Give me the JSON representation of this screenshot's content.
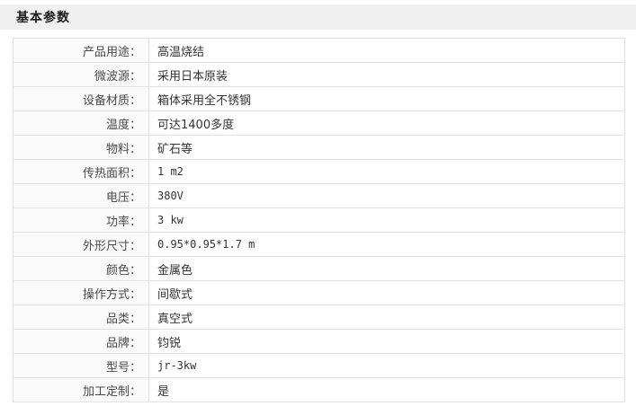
{
  "header": {
    "title": "基本参数",
    "background": "#f0f0f0",
    "text_color": "#1c1c1c"
  },
  "table": {
    "border_color": "#e2e2e2",
    "label_bg": "#fafafa",
    "value_bg": "#ffffff",
    "rows": [
      {
        "label": "产品用途：",
        "value": "高温烧结"
      },
      {
        "label": "微波源：",
        "value": "采用日本原装"
      },
      {
        "label": "设备材质：",
        "value": "箱体采用全不锈钢"
      },
      {
        "label": "温度：",
        "value": "可达1400多度"
      },
      {
        "label": "物料：",
        "value": "矿石等"
      },
      {
        "label": "传热面积：",
        "value": "1 m2"
      },
      {
        "label": "电压：",
        "value": "380V"
      },
      {
        "label": "功率：",
        "value": "3 kw"
      },
      {
        "label": "外形尺寸：",
        "value": "0.95*0.95*1.7 m"
      },
      {
        "label": "颜色：",
        "value": "金属色"
      },
      {
        "label": "操作方式：",
        "value": "间歇式"
      },
      {
        "label": "品类：",
        "value": "真空式"
      },
      {
        "label": "品牌：",
        "value": "钧锐"
      },
      {
        "label": "型号：",
        "value": "jr-3kw"
      },
      {
        "label": "加工定制：",
        "value": "是"
      }
    ]
  }
}
